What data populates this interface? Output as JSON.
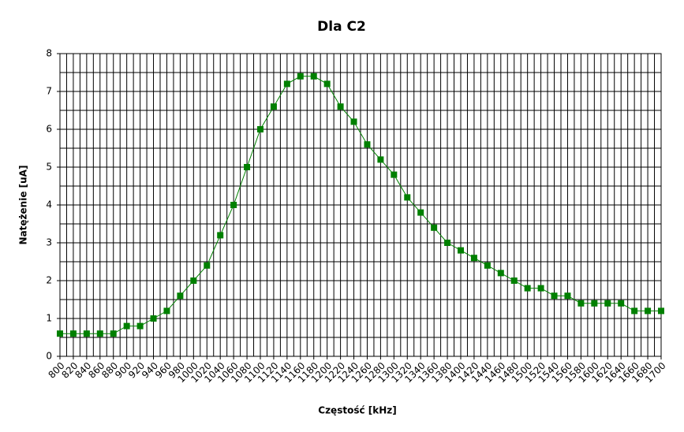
{
  "chart_data": {
    "type": "line",
    "title": "Dla C2",
    "x_label": "Częstość [kHz]",
    "y_label": "Natężenie [uA]",
    "x": [
      800,
      820,
      840,
      860,
      880,
      900,
      920,
      940,
      960,
      980,
      1000,
      1020,
      1040,
      1060,
      1080,
      1100,
      1120,
      1140,
      1160,
      1180,
      1200,
      1220,
      1240,
      1260,
      1280,
      1300,
      1320,
      1340,
      1360,
      1380,
      1400,
      1420,
      1440,
      1460,
      1480,
      1500,
      1520,
      1540,
      1560,
      1580,
      1600,
      1620,
      1640,
      1660,
      1680,
      1700
    ],
    "series": [
      {
        "color": "#008000",
        "values": [
          0.6,
          0.6,
          0.6,
          0.6,
          0.6,
          0.8,
          0.8,
          1.0,
          1.2,
          1.6,
          2.0,
          2.4,
          3.2,
          4.0,
          5.0,
          6.0,
          6.6,
          7.2,
          7.4,
          7.4,
          7.2,
          6.6,
          6.2,
          5.6,
          5.2,
          4.8,
          4.2,
          3.8,
          3.4,
          3.0,
          2.8,
          2.6,
          2.4,
          2.2,
          2.0,
          1.8,
          1.8,
          1.6,
          1.6,
          1.4,
          1.4,
          1.4,
          1.4,
          1.2,
          1.2,
          1.2
        ]
      }
    ],
    "xlim": [
      800,
      1700
    ],
    "ylim": [
      0,
      8
    ],
    "xticks": [
      800,
      820,
      840,
      860,
      880,
      900,
      920,
      940,
      960,
      980,
      1000,
      1020,
      1040,
      1060,
      1080,
      1100,
      1120,
      1140,
      1160,
      1180,
      1200,
      1220,
      1240,
      1260,
      1280,
      1300,
      1320,
      1340,
      1360,
      1380,
      1400,
      1420,
      1440,
      1460,
      1480,
      1500,
      1520,
      1540,
      1560,
      1580,
      1600,
      1620,
      1640,
      1660,
      1680,
      1700
    ],
    "yticks": [
      0,
      1,
      2,
      3,
      4,
      5,
      6,
      7,
      8
    ],
    "grid": true
  }
}
